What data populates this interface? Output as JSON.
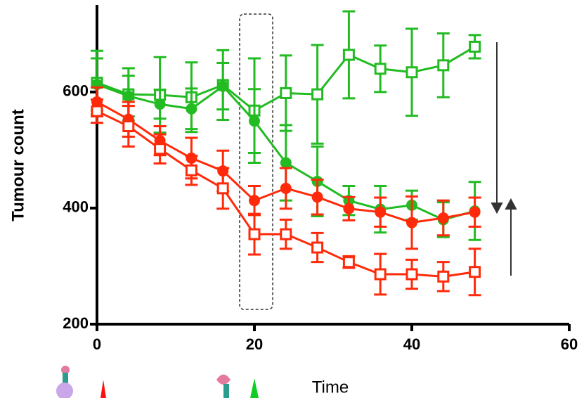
{
  "chart_data": {
    "type": "line",
    "x_label": "Time",
    "y_label": "Tumour count",
    "xlim": [
      0,
      60
    ],
    "xticks": [
      0,
      20,
      40,
      60
    ],
    "ylim": [
      200,
      750
    ],
    "yticks": [
      200,
      400,
      600
    ],
    "x": [
      0,
      4,
      8,
      12,
      16,
      20,
      24,
      28,
      32,
      36,
      40,
      44,
      48
    ],
    "series": [
      {
        "color": "#22bb22",
        "marker": "square-open",
        "values": [
          616,
          596,
          595,
          591,
          612,
          568,
          598,
          596,
          664,
          640,
          634,
          646,
          678
        ],
        "errors": [
          55,
          45,
          65,
          60,
          60,
          90,
          65,
          85,
          75,
          40,
          75,
          55,
          20
        ]
      },
      {
        "color": "#22bb22",
        "marker": "circle",
        "values": [
          613,
          593,
          579,
          571,
          610,
          550,
          478,
          446,
          413,
          398,
          405,
          380,
          395
        ],
        "errors": [
          45,
          35,
          25,
          35,
          40,
          55,
          65,
          60,
          25,
          40,
          25,
          30,
          50
        ]
      },
      {
        "color": "#ff2a0a",
        "marker": "circle",
        "values": [
          583,
          553,
          516,
          486,
          464,
          413,
          434,
          419,
          399,
          393,
          375,
          383,
          393
        ],
        "errors": [
          25,
          30,
          25,
          35,
          35,
          25,
          35,
          30,
          20,
          25,
          45,
          30,
          25
        ]
      },
      {
        "color": "#ff2a0a",
        "marker": "square-open",
        "values": [
          567,
          541,
          502,
          465,
          434,
          355,
          355,
          332,
          307,
          286,
          286,
          282,
          290
        ],
        "errors": [
          20,
          35,
          25,
          25,
          35,
          35,
          25,
          25,
          10,
          35,
          25,
          25,
          40
        ]
      }
    ]
  }
}
